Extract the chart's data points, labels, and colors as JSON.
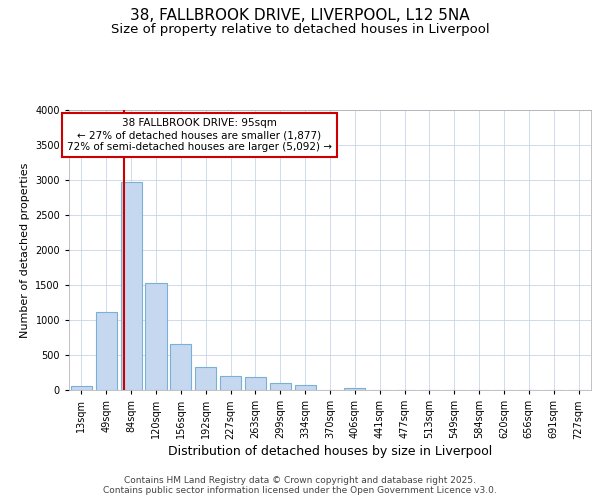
{
  "title": "38, FALLBROOK DRIVE, LIVERPOOL, L12 5NA",
  "subtitle": "Size of property relative to detached houses in Liverpool",
  "xlabel": "Distribution of detached houses by size in Liverpool",
  "ylabel": "Number of detached properties",
  "bar_color": "#c5d8f0",
  "bar_edge_color": "#7bafd4",
  "background_color": "#ffffff",
  "grid_color": "#c8d4e8",
  "fig_background": "#ffffff",
  "bins": [
    "13sqm",
    "49sqm",
    "84sqm",
    "120sqm",
    "156sqm",
    "192sqm",
    "227sqm",
    "263sqm",
    "299sqm",
    "334sqm",
    "370sqm",
    "406sqm",
    "441sqm",
    "477sqm",
    "513sqm",
    "549sqm",
    "584sqm",
    "620sqm",
    "656sqm",
    "691sqm",
    "727sqm"
  ],
  "values": [
    60,
    1120,
    2970,
    1530,
    660,
    325,
    200,
    185,
    100,
    75,
    0,
    35,
    0,
    0,
    0,
    0,
    0,
    0,
    0,
    0,
    0
  ],
  "ylim": [
    0,
    4000
  ],
  "yticks": [
    0,
    500,
    1000,
    1500,
    2000,
    2500,
    3000,
    3500,
    4000
  ],
  "vline_x": 1.72,
  "vline_color": "#cc0000",
  "annotation_text": "38 FALLBROOK DRIVE: 95sqm\n← 27% of detached houses are smaller (1,877)\n72% of semi-detached houses are larger (5,092) →",
  "annotation_box_color": "#ffffff",
  "annotation_box_edge": "#cc0000",
  "footer_line1": "Contains HM Land Registry data © Crown copyright and database right 2025.",
  "footer_line2": "Contains public sector information licensed under the Open Government Licence v3.0.",
  "title_fontsize": 11,
  "subtitle_fontsize": 9.5,
  "xlabel_fontsize": 9,
  "ylabel_fontsize": 8,
  "tick_fontsize": 7,
  "annot_fontsize": 7.5,
  "footer_fontsize": 6.5
}
